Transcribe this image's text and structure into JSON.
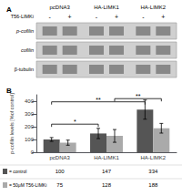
{
  "chart_data": [
    {
      "type": "blot",
      "title": "A",
      "columns": [
        "pcDNA3",
        "HA-LIMK1",
        "HA-LIMK2"
      ],
      "row_label": "T56-LIMKi",
      "lanes": [
        "-",
        "+",
        "-",
        "+",
        "-",
        "+"
      ],
      "rows": [
        "p-cofilin",
        "cofilin",
        "β-tubulin"
      ],
      "colors": [
        "#d0d0d0",
        "#888888",
        "#999999"
      ]
    },
    {
      "type": "bar",
      "title": "B",
      "categories": [
        "pcDNA3",
        "HA-LIMK1",
        "HA-LIMK2"
      ],
      "series": [
        {
          "name": "= control",
          "color": "#555555",
          "values": [
            100,
            147,
            334
          ],
          "errors": [
            15,
            40,
            75
          ]
        },
        {
          "name": "= 50μM T56-LIMKi",
          "color": "#aaaaaa",
          "values": [
            75,
            128,
            188
          ],
          "errors": [
            20,
            50,
            38
          ]
        }
      ],
      "ylabel": "p-cofilin levels [%of control]",
      "ylim": [
        0,
        450
      ],
      "yticks": [
        0,
        100,
        200,
        300,
        400
      ],
      "grid": false,
      "legend": "bottom",
      "annotations": [
        {
          "text": "*",
          "from": [
            0,
            0
          ],
          "to": [
            1,
            0
          ],
          "y": 220
        },
        {
          "text": "**",
          "from": [
            0,
            0
          ],
          "to": [
            2,
            0
          ],
          "y": 395
        },
        {
          "text": "**",
          "from": [
            1,
            1
          ],
          "to": [
            2,
            1
          ],
          "y": 420
        }
      ]
    }
  ]
}
